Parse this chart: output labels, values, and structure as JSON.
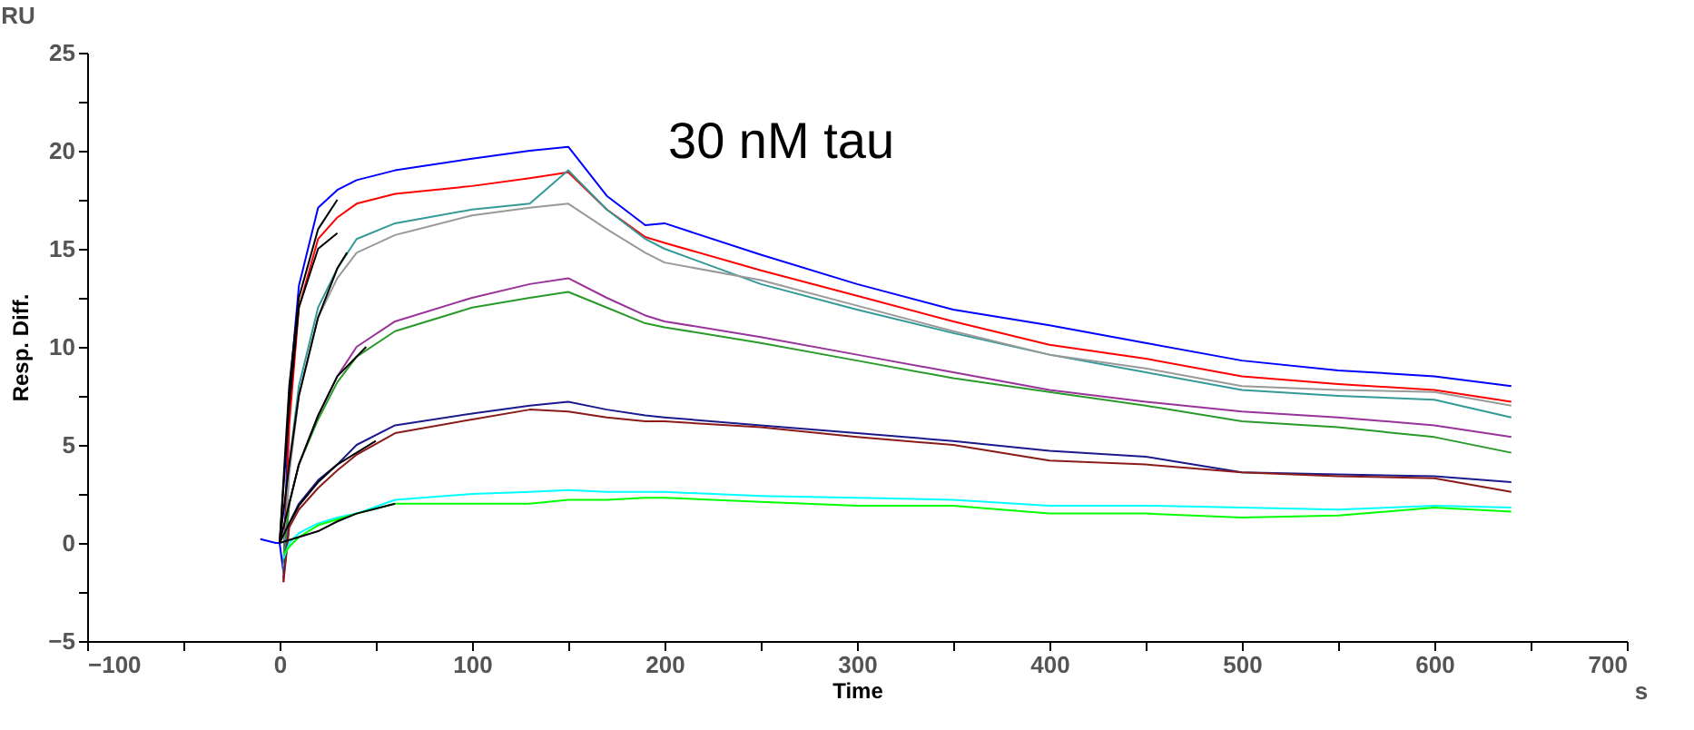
{
  "chart_data": {
    "type": "line",
    "xlabel": "Time",
    "ylabel": "Resp. Diff.",
    "annotations": [
      "30 nM tau",
      "RU",
      "s"
    ],
    "x": [
      -10,
      -2,
      0,
      2,
      5,
      10,
      20,
      30,
      40,
      60,
      100,
      130,
      150,
      170,
      190,
      200,
      250,
      300,
      350,
      400,
      450,
      500,
      550,
      600,
      640
    ],
    "series": [
      {
        "color": "#0000ff",
        "values": [
          0.2,
          0,
          0,
          -1.5,
          7.6,
          13.1,
          17.1,
          18.0,
          18.5,
          19.0,
          19.6,
          20.0,
          20.2,
          17.7,
          16.2,
          16.3,
          14.7,
          13.2,
          11.9,
          11.1,
          10.2,
          9.3,
          8.8,
          8.5,
          8.0
        ]
      },
      {
        "color": "#ff0000",
        "values": [
          null,
          null,
          null,
          -2,
          6,
          12,
          15.5,
          16.6,
          17.3,
          17.8,
          18.2,
          18.6,
          18.9,
          17,
          15.6,
          15.3,
          13.9,
          12.6,
          11.3,
          10.1,
          9.4,
          8.5,
          8.1,
          7.8,
          7.2
        ]
      },
      {
        "color": "#339999",
        "values": [
          null,
          null,
          null,
          -1.5,
          4,
          8,
          12,
          14,
          15.5,
          16.3,
          17.0,
          17.3,
          19,
          17,
          15.5,
          15,
          13.2,
          11.9,
          10.7,
          9.6,
          8.7,
          7.8,
          7.5,
          7.3,
          6.4
        ]
      },
      {
        "color": "#999999",
        "values": [
          null,
          null,
          null,
          -1.2,
          3.5,
          7.5,
          11.5,
          13.5,
          14.8,
          15.7,
          16.7,
          17.1,
          17.3,
          16,
          14.8,
          14.3,
          13.4,
          12.1,
          10.8,
          9.6,
          8.9,
          8.0,
          7.8,
          7.7,
          7.0
        ]
      },
      {
        "color": "#993399",
        "values": [
          null,
          null,
          null,
          -1,
          2,
          4,
          6.5,
          8.5,
          10,
          11.3,
          12.5,
          13.2,
          13.5,
          12.5,
          11.6,
          11.3,
          10.5,
          9.6,
          8.7,
          7.8,
          7.2,
          6.7,
          6.4,
          6.0,
          5.4
        ]
      },
      {
        "color": "#2a9a2a",
        "values": [
          null,
          null,
          null,
          -1,
          2,
          4,
          6.3,
          8.2,
          9.5,
          10.8,
          12,
          12.5,
          12.8,
          12,
          11.2,
          11,
          10.2,
          9.3,
          8.4,
          7.7,
          7.0,
          6.2,
          5.9,
          5.4,
          4.6
        ]
      },
      {
        "color": "#1a1a8c",
        "values": [
          null,
          null,
          null,
          -1.8,
          1,
          2,
          3.2,
          4,
          5,
          6.0,
          6.6,
          7.0,
          7.2,
          6.8,
          6.5,
          6.4,
          6.0,
          5.6,
          5.2,
          4.7,
          4.4,
          3.6,
          3.5,
          3.4,
          3.1
        ]
      },
      {
        "color": "#8b1a1a",
        "values": [
          null,
          null,
          null,
          -2,
          0.8,
          1.7,
          2.8,
          3.7,
          4.5,
          5.6,
          6.3,
          6.8,
          6.7,
          6.4,
          6.2,
          6.2,
          5.9,
          5.4,
          5.0,
          4.2,
          4.0,
          3.6,
          3.4,
          3.3,
          2.6
        ]
      },
      {
        "color": "#00ffff",
        "values": [
          null,
          null,
          null,
          -0.8,
          0,
          0.5,
          1.0,
          1.3,
          1.5,
          2.2,
          2.5,
          2.6,
          2.7,
          2.6,
          2.6,
          2.6,
          2.4,
          2.3,
          2.2,
          1.9,
          1.9,
          1.8,
          1.7,
          1.9,
          1.8
        ]
      },
      {
        "color": "#00ff00",
        "values": [
          null,
          null,
          null,
          -0.6,
          -0.2,
          0.3,
          0.9,
          1.2,
          1.5,
          2.0,
          2.0,
          2.0,
          2.2,
          2.2,
          2.3,
          2.3,
          2.1,
          1.9,
          1.9,
          1.5,
          1.5,
          1.3,
          1.4,
          1.8,
          1.6
        ]
      },
      {
        "color": "#000000",
        "x": [
          0,
          5,
          10,
          20,
          30
        ],
        "values": [
          0,
          8,
          12.5,
          16,
          17.5
        ]
      },
      {
        "color": "#000000",
        "x": [
          0,
          5,
          10,
          20,
          30
        ],
        "values": [
          0,
          7,
          12,
          15,
          15.8
        ]
      },
      {
        "color": "#000000",
        "x": [
          0,
          5,
          10,
          20,
          30,
          35
        ],
        "values": [
          0,
          4,
          7.5,
          11.5,
          14,
          14.8
        ]
      },
      {
        "color": "#000000",
        "x": [
          0,
          5,
          10,
          20,
          30,
          45
        ],
        "values": [
          0,
          2,
          4,
          6.5,
          8.5,
          10
        ]
      },
      {
        "color": "#000000",
        "x": [
          0,
          5,
          10,
          20,
          30,
          50
        ],
        "values": [
          0,
          1,
          1.9,
          3.1,
          4,
          5.2
        ]
      },
      {
        "color": "#000000",
        "x": [
          0,
          10,
          20,
          30,
          40,
          60
        ],
        "values": [
          0,
          0.3,
          0.6,
          1.1,
          1.5,
          2.0
        ]
      }
    ],
    "xlim": [
      -100,
      700
    ],
    "xticks": [
      -100,
      {
        "value": -50,
        "label": null
      },
      0,
      {
        "value": 50,
        "label": null
      },
      100,
      {
        "value": 150,
        "label": null
      },
      200,
      {
        "value": 250,
        "label": null
      },
      300,
      {
        "value": 350,
        "label": null
      },
      400,
      {
        "value": 450,
        "label": null
      },
      500,
      {
        "value": 550,
        "label": null
      },
      600,
      {
        "value": 650,
        "label": null
      },
      700
    ],
    "ylim": [
      -5,
      25
    ],
    "yticks": [
      -5,
      {
        "value": -2.5,
        "label": null
      },
      0,
      {
        "value": 2.5,
        "label": null
      },
      5,
      {
        "value": 7.5,
        "label": null
      },
      10,
      {
        "value": 12.5,
        "label": null
      },
      15,
      {
        "value": 17.5,
        "label": null
      },
      20,
      {
        "value": 22.5,
        "label": null
      },
      25
    ]
  }
}
